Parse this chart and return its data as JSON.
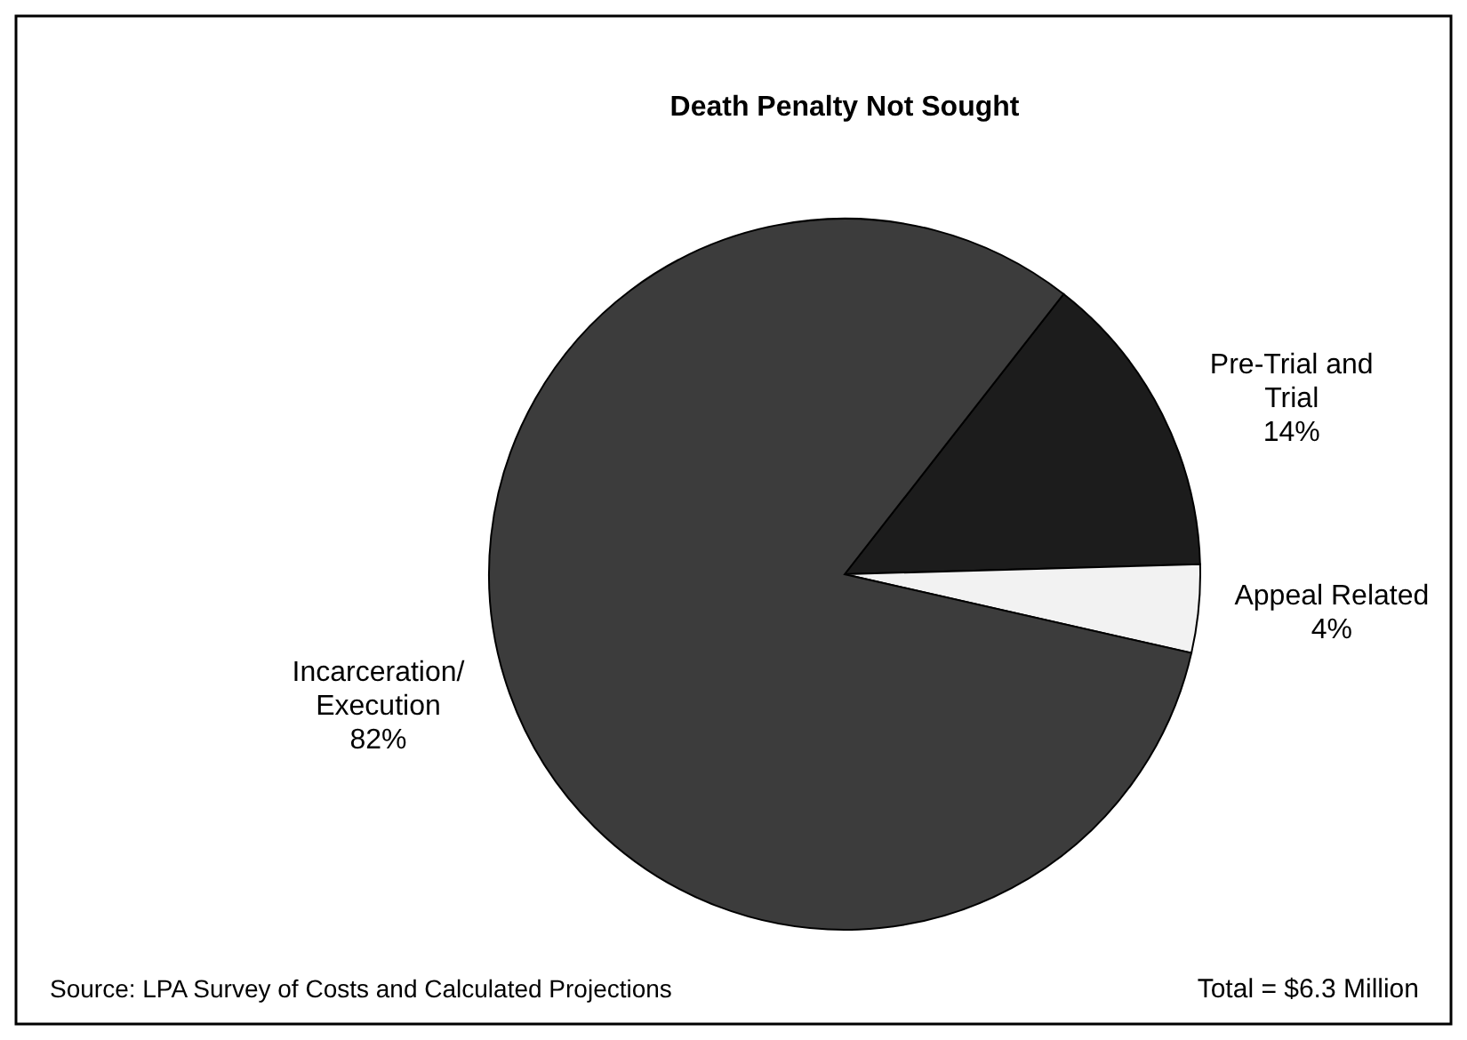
{
  "chart_data": {
    "type": "pie",
    "title": "Death Penalty Not Sought",
    "categories": [
      "Pre-Trial and Trial",
      "Appeal Related",
      "Incarceration/Execution"
    ],
    "values": [
      14,
      4,
      82
    ],
    "colors": [
      "#1c1c1c",
      "#f2f2f2",
      "#3c3c3c"
    ],
    "value_labels": [
      "14%",
      "4%",
      "82%"
    ],
    "annotations": [
      "Source:  LPA Survey of Costs and Calculated Projections",
      "Total = $6.3 Million"
    ]
  }
}
